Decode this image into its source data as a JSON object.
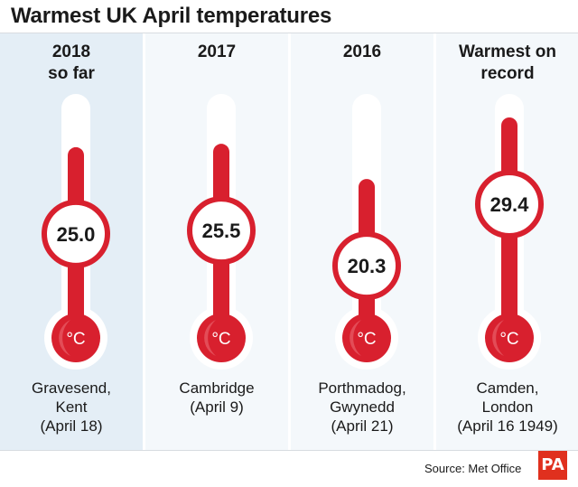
{
  "title": "Warmest UK April temperatures",
  "source": "Source: Met Office",
  "logo_text": "PA",
  "unit_symbol": "°C",
  "colors": {
    "mercury": "#d8202e",
    "mercury_light": "#e8606a",
    "tube": "#ffffff",
    "highlight_panel": "#e4eef6",
    "panel": "#f4f8fb"
  },
  "chart_data": {
    "type": "bar",
    "title": "Warmest UK April temperatures",
    "unit": "°C",
    "categories": [
      "2018 so far",
      "2017",
      "2016",
      "Warmest on record"
    ],
    "values": [
      25.0,
      25.5,
      20.3,
      29.4
    ],
    "value_labels": [
      "25.0",
      "25.5",
      "20.3",
      "29.4"
    ],
    "ylim": [
      0,
      31
    ],
    "columns": [
      {
        "year_lines": [
          "2018",
          "so far"
        ],
        "value_label": "25.0",
        "place_lines": [
          "Gravesend,",
          "Kent",
          "(April 18)"
        ]
      },
      {
        "year_lines": [
          "2017"
        ],
        "value_label": "25.5",
        "place_lines": [
          "Cambridge",
          "(April 9)"
        ]
      },
      {
        "year_lines": [
          "2016"
        ],
        "value_label": "20.3",
        "place_lines": [
          "Porthmadog,",
          "Gwynedd",
          "(April 21)"
        ]
      },
      {
        "year_lines": [
          "Warmest on",
          "record"
        ],
        "value_label": "29.4",
        "place_lines": [
          "Camden,",
          "London",
          "(April 16 1949)"
        ]
      }
    ]
  }
}
